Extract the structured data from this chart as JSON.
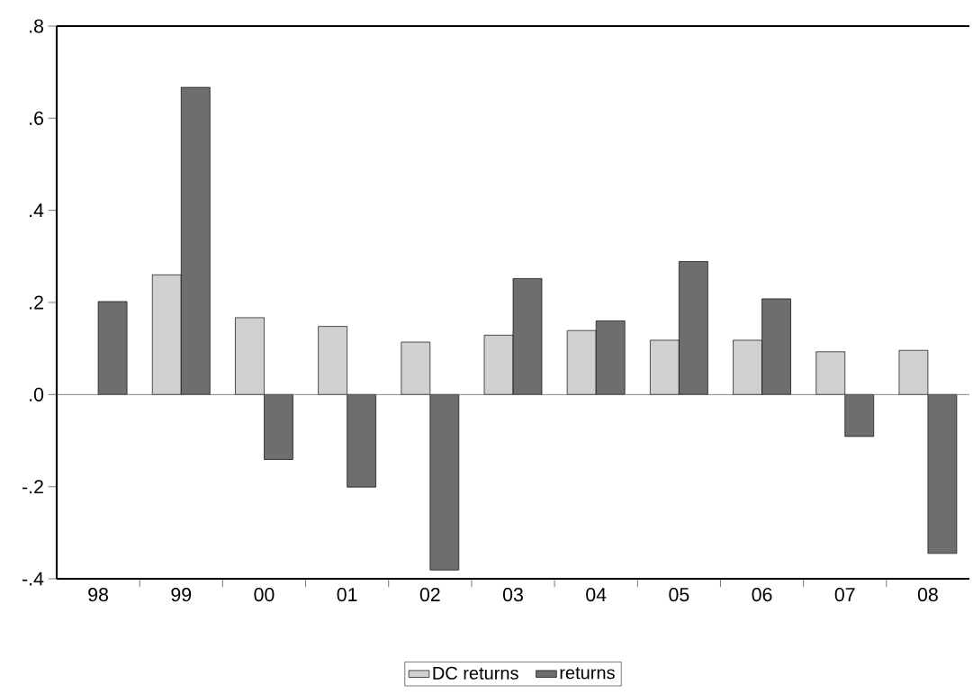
{
  "chart_data": {
    "type": "bar",
    "categories": [
      "98",
      "99",
      "00",
      "01",
      "02",
      "03",
      "04",
      "05",
      "06",
      "07",
      "08"
    ],
    "series": [
      {
        "name": "DC returns",
        "color": "#d0d0d0",
        "values": [
          null,
          0.26,
          0.167,
          0.148,
          0.114,
          0.129,
          0.139,
          0.118,
          0.118,
          0.093,
          0.096
        ]
      },
      {
        "name": "returns",
        "color": "#6e6e6e",
        "values": [
          0.202,
          0.667,
          -0.141,
          -0.201,
          -0.381,
          0.252,
          0.16,
          0.289,
          0.208,
          -0.091,
          -0.345
        ]
      }
    ],
    "ylim": [
      -0.4,
      0.8
    ],
    "yticks": [
      {
        "value": -0.4,
        "label": "-.4"
      },
      {
        "value": -0.2,
        "label": "-.2"
      },
      {
        "value": 0,
        "label": ".0"
      },
      {
        "value": 0.2,
        "label": ".2"
      },
      {
        "value": 0.4,
        "label": ".4"
      },
      {
        "value": 0.6,
        "label": ".6"
      },
      {
        "value": 0.8,
        "label": ".8"
      }
    ],
    "legend": "bottom"
  }
}
